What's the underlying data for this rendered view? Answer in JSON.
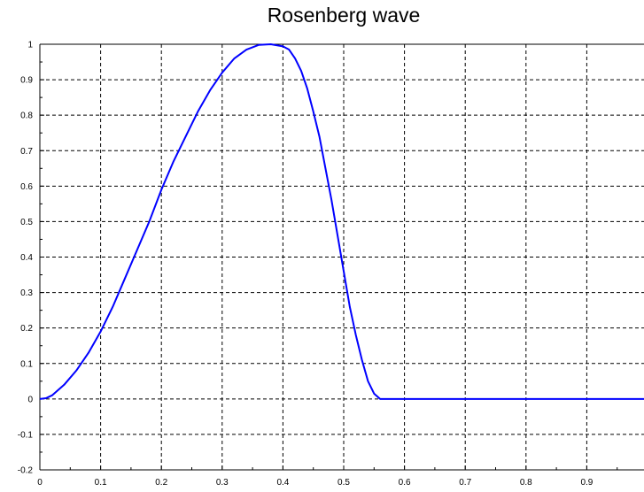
{
  "chart_data": {
    "type": "line",
    "title": "Rosenberg wave",
    "xlabel": "",
    "ylabel": "",
    "xlim": [
      0,
      1
    ],
    "ylim": [
      -0.2,
      1
    ],
    "xticks": [
      "0",
      "0.1",
      "0.2",
      "0.3",
      "0.4",
      "0.5",
      "0.6",
      "0.7",
      "0.8",
      "0.9"
    ],
    "yticks": [
      "-0.2",
      "-0.1",
      "0",
      "0.1",
      "0.2",
      "0.3",
      "0.4",
      "0.5",
      "0.6",
      "0.7",
      "0.8",
      "0.9",
      "1"
    ],
    "grid": true,
    "series": [
      {
        "color": "#0000ff",
        "x": [
          0,
          0.01,
          0.02,
          0.04,
          0.06,
          0.08,
          0.1,
          0.12,
          0.14,
          0.16,
          0.18,
          0.2,
          0.22,
          0.24,
          0.26,
          0.28,
          0.3,
          0.32,
          0.34,
          0.36,
          0.38,
          0.4,
          0.41,
          0.42,
          0.43,
          0.44,
          0.45,
          0.46,
          0.47,
          0.48,
          0.49,
          0.5,
          0.51,
          0.52,
          0.53,
          0.54,
          0.55,
          0.56,
          0.6,
          0.7,
          0.8,
          0.9,
          1.0
        ],
        "y": [
          0,
          0.002,
          0.01,
          0.04,
          0.08,
          0.13,
          0.19,
          0.26,
          0.34,
          0.42,
          0.5,
          0.59,
          0.67,
          0.74,
          0.81,
          0.87,
          0.92,
          0.96,
          0.985,
          0.998,
          1.0,
          0.994,
          0.985,
          0.96,
          0.925,
          0.875,
          0.81,
          0.74,
          0.65,
          0.56,
          0.46,
          0.36,
          0.26,
          0.18,
          0.11,
          0.05,
          0.015,
          0,
          0,
          0,
          0,
          0,
          0
        ]
      }
    ]
  }
}
